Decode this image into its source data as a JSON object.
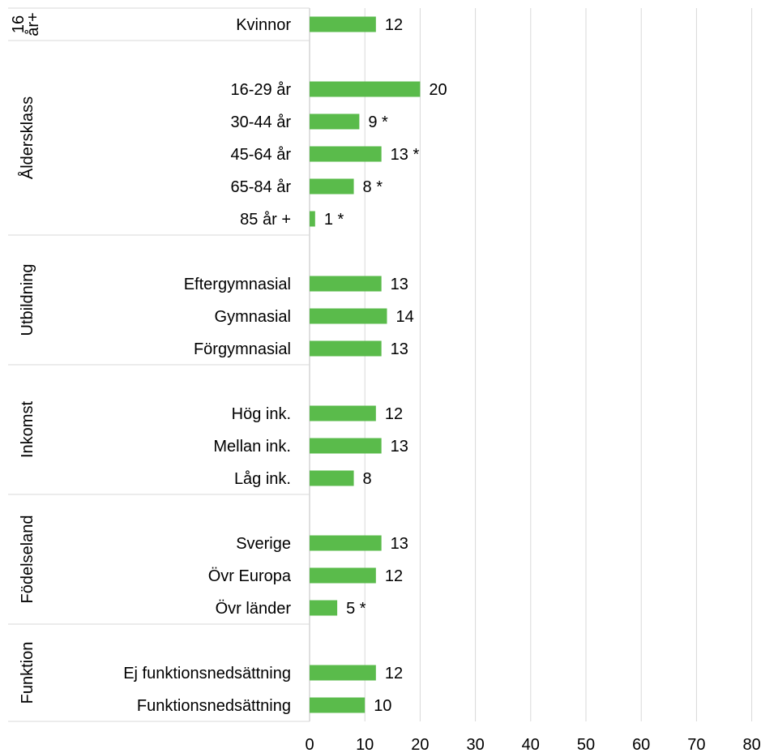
{
  "chart_data": {
    "type": "bar",
    "orientation": "horizontal",
    "title": "",
    "xlabel": "",
    "ylabel": "",
    "xlim": [
      0,
      80
    ],
    "xticks": [
      0,
      10,
      20,
      30,
      40,
      50,
      60,
      70,
      80
    ],
    "grid": "vertical",
    "legend": "none",
    "bar_color": "#5ABB4B",
    "grid_color": "#D9D9D9",
    "groups": [
      {
        "name": "16 år+",
        "name_lines": [
          "16",
          "år+"
        ],
        "categories": [
          "Kvinnor"
        ],
        "values": [
          12
        ],
        "labels": [
          "12"
        ]
      },
      {
        "name": "Åldersklass",
        "categories": [
          "16-29 år",
          "30-44 år",
          "45-64 år",
          "65-84 år",
          "85 år +"
        ],
        "values": [
          20,
          9,
          13,
          8,
          1
        ],
        "labels": [
          "20",
          "9 *",
          "13 *",
          "8 *",
          "1 *"
        ]
      },
      {
        "name": "Utbildning",
        "categories": [
          "Eftergymnasial",
          "Gymnasial",
          "Förgymnasial"
        ],
        "values": [
          13,
          14,
          13
        ],
        "labels": [
          "13",
          "14",
          "13"
        ]
      },
      {
        "name": "Inkomst",
        "categories": [
          "Hög ink.",
          "Mellan ink.",
          "Låg ink."
        ],
        "values": [
          12,
          13,
          8
        ],
        "labels": [
          "12",
          "13",
          "8"
        ]
      },
      {
        "name": "Födelseland",
        "categories": [
          "Sverige",
          "Övr Europa",
          "Övr länder"
        ],
        "values": [
          13,
          12,
          5
        ],
        "labels": [
          "13",
          "12",
          "5 *"
        ]
      },
      {
        "name": "Funktion",
        "categories": [
          "Ej funktionsnedsättning",
          "Funktionsnedsättning"
        ],
        "values": [
          12,
          10
        ],
        "labels": [
          "12",
          "10"
        ]
      }
    ]
  }
}
